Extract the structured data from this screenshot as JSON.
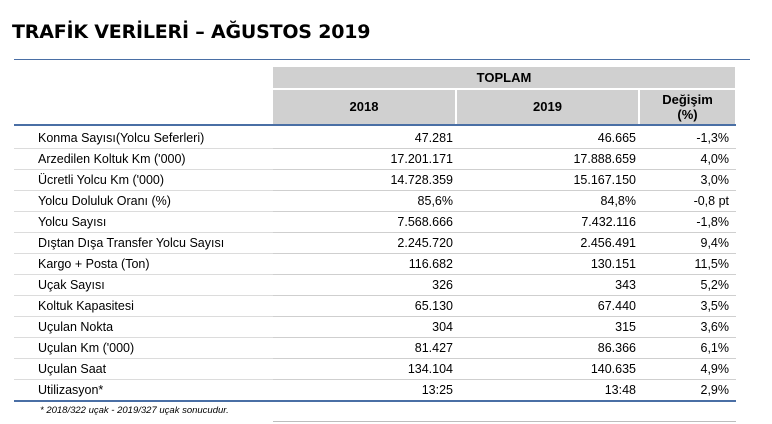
{
  "title": "TRAFİK VERİLERİ – AĞUSTOS 2019",
  "header": {
    "group": "TOPLAM",
    "col_2018": "2018",
    "col_2019": "2019",
    "col_change_line1": "Değişim",
    "col_change_line2": "(%)"
  },
  "rows": [
    {
      "label": "Konma Sayısı(Yolcu Seferleri)",
      "v2018": "47.281",
      "v2019": "46.665",
      "change": "-1,3%"
    },
    {
      "label": "Arzedilen Koltuk Km ('000)",
      "v2018": "17.201.171",
      "v2019": "17.888.659",
      "change": "4,0%"
    },
    {
      "label": "Ücretli Yolcu Km ('000)",
      "v2018": "14.728.359",
      "v2019": "15.167.150",
      "change": "3,0%"
    },
    {
      "label": "Yolcu Doluluk Oranı (%)",
      "v2018": "85,6%",
      "v2019": "84,8%",
      "change": "-0,8 pt"
    },
    {
      "label": "Yolcu Sayısı",
      "v2018": "7.568.666",
      "v2019": "7.432.116",
      "change": "-1,8%"
    },
    {
      "label": "Dıştan Dışa Transfer Yolcu Sayısı",
      "v2018": "2.245.720",
      "v2019": "2.456.491",
      "change": "9,4%"
    },
    {
      "label": "Kargo + Posta (Ton)",
      "v2018": "116.682",
      "v2019": "130.151",
      "change": "11,5%"
    },
    {
      "label": "Uçak Sayısı",
      "v2018": "326",
      "v2019": "343",
      "change": "5,2%"
    },
    {
      "label": "Koltuk Kapasitesi",
      "v2018": "65.130",
      "v2019": "67.440",
      "change": "3,5%"
    },
    {
      "label": "Uçulan Nokta",
      "v2018": "304",
      "v2019": "315",
      "change": "3,6%"
    },
    {
      "label": "Uçulan Km ('000)",
      "v2018": "81.427",
      "v2019": "86.366",
      "change": "6,1%"
    },
    {
      "label": "Uçulan Saat",
      "v2018": "134.104",
      "v2019": "140.635",
      "change": "4,9%"
    },
    {
      "label": "Utilizasyon*",
      "v2018": "13:25",
      "v2019": "13:48",
      "change": "2,9%"
    }
  ],
  "footnote": "* 2018/322 uçak - 2019/327 uçak sonucudur."
}
